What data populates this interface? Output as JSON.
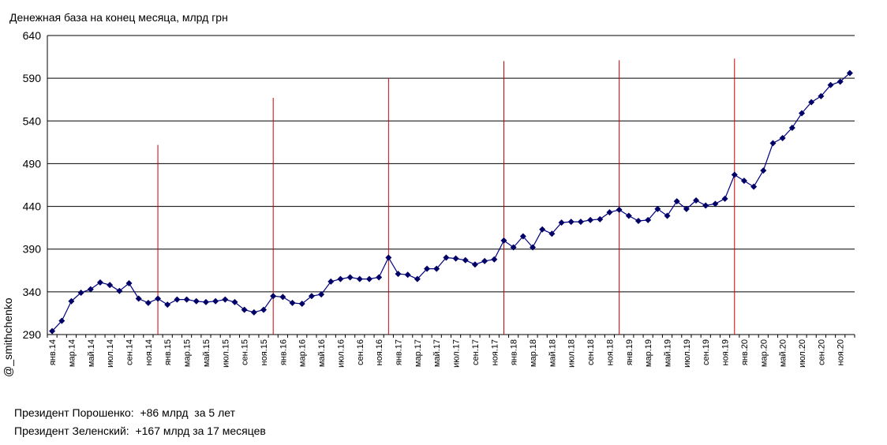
{
  "title": "Денежная база на конец месяца, млрд грн",
  "watermark": "@_smithchenko",
  "notes": [
    "Президент Порошенко:  +86 млрд  за 5 лет",
    "Президент Зеленский:  +167 млрд за 17 месяцев"
  ],
  "colors": {
    "series": "#000080",
    "marker": "#000066",
    "vlines": "#cc0000",
    "grid": "#000000"
  },
  "chart_data": {
    "type": "line",
    "title": "Денежная база на конец месяца, млрд грн",
    "xlabel": "",
    "ylabel": "",
    "ylim": [
      290,
      640
    ],
    "yticks": [
      290,
      340,
      390,
      440,
      490,
      540,
      590,
      640
    ],
    "grid": true,
    "legend": "none",
    "x_tick_labels": [
      "янв.14",
      "мар.14",
      "май.14",
      "июл.14",
      "сен.14",
      "ноя.14",
      "янв.15",
      "мар.15",
      "май.15",
      "июл.15",
      "сен.15",
      "ноя.15",
      "янв.16",
      "мар.16",
      "май.16",
      "июл.16",
      "сен.16",
      "ноя.16",
      "янв.17",
      "мар.17",
      "май.17",
      "июл.17",
      "сен.17",
      "ноя.17",
      "янв.18",
      "мар.18",
      "май.18",
      "июл.18",
      "сен.18",
      "ноя.18",
      "янв.19",
      "мар.19",
      "май.19",
      "июл.19",
      "сен.19",
      "ноя.19",
      "янв.20",
      "мар.20",
      "май.20",
      "июл.20",
      "сен.20",
      "ноя.20"
    ],
    "series": [
      {
        "values": [
          294,
          306,
          329,
          339,
          343,
          351,
          348,
          341,
          350,
          332,
          327,
          332,
          325,
          331,
          331,
          329,
          328,
          329,
          331,
          328,
          319,
          316,
          319,
          335,
          334,
          327,
          326,
          335,
          337,
          352,
          355,
          357,
          355,
          355,
          357,
          380,
          361,
          360,
          355,
          367,
          367,
          380,
          379,
          377,
          372,
          376,
          378,
          400,
          392,
          405,
          392,
          413,
          408,
          421,
          422,
          422,
          424,
          425,
          433,
          436,
          429,
          423,
          424,
          437,
          429,
          446,
          437,
          447,
          441,
          443,
          449,
          477,
          470,
          463,
          482,
          514,
          520,
          532,
          549,
          562,
          569,
          582,
          586,
          596
        ]
      }
    ],
    "vertical_markers_month_index": [
      11,
      23,
      35,
      47,
      59,
      71
    ],
    "vertical_markers_top": [
      512,
      567,
      590,
      610,
      611,
      613
    ]
  }
}
